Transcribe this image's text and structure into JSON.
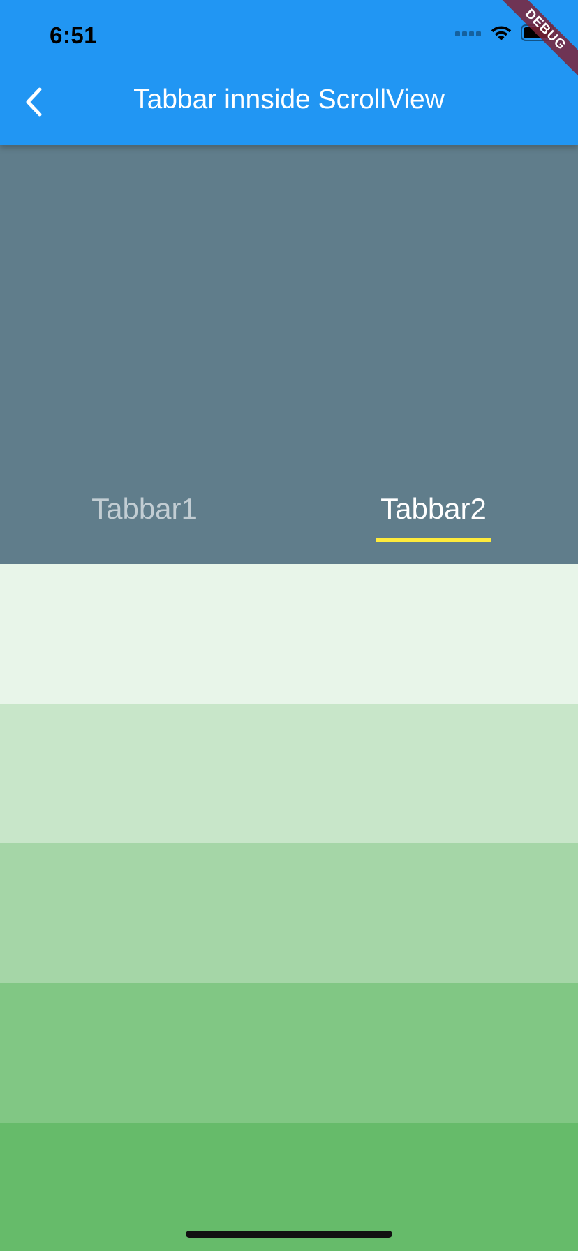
{
  "status_bar": {
    "time": "6:51",
    "icons": [
      "signal-dots-icon",
      "wifi-icon",
      "battery-icon"
    ]
  },
  "debug_banner": "DEBUG",
  "app_bar": {
    "title": "Tabbar innside ScrollView",
    "back_icon": "chevron-left-icon",
    "color": "#2196F3"
  },
  "header": {
    "color": "#607D8B"
  },
  "tabs": [
    {
      "label": "Tabbar1",
      "selected": false
    },
    {
      "label": "Tabbar2",
      "selected": true
    }
  ],
  "indicator_color": "#FFEB3B",
  "bands": [
    {
      "color": "#E8F5E9"
    },
    {
      "color": "#C8E6C9"
    },
    {
      "color": "#A5D6A7"
    },
    {
      "color": "#81C784"
    },
    {
      "color": "#66BB6A"
    }
  ]
}
